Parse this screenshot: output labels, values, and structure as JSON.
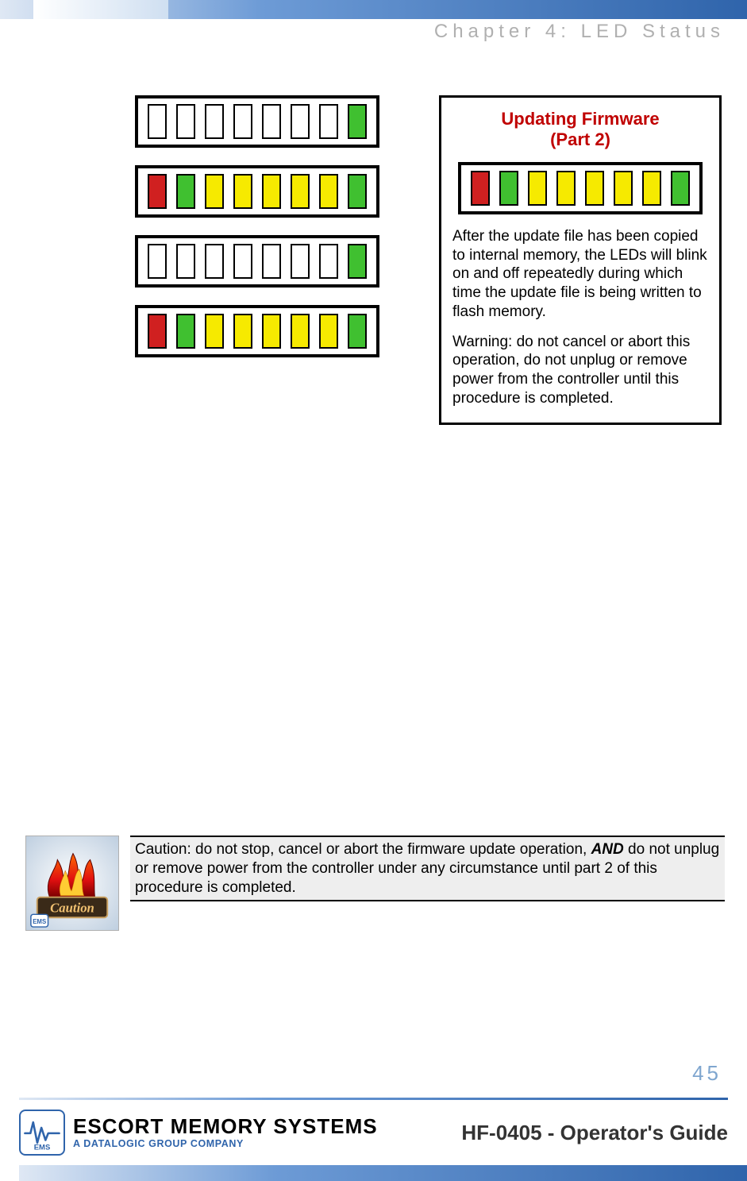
{
  "colors": {
    "red": "#d02020",
    "green": "#40c030",
    "yellow": "#f6ea00",
    "white": "#ffffff",
    "black": "#000000",
    "title_red": "#c00000",
    "page_num_blue": "#7fa6cf",
    "chapter_gray": "#b0b0b0",
    "accent_blue": "#2f64ab",
    "caution_bg": "#eeeeee"
  },
  "header": {
    "chapter": "Chapter 4: LED Status"
  },
  "led_strips": {
    "led_count": 8,
    "led_width": 24,
    "led_height": 44,
    "border_width": 2,
    "strip_border_width": 4,
    "strips": [
      {
        "colors": [
          "white",
          "white",
          "white",
          "white",
          "white",
          "white",
          "white",
          "green"
        ]
      },
      {
        "colors": [
          "red",
          "green",
          "yellow",
          "yellow",
          "yellow",
          "yellow",
          "yellow",
          "green"
        ]
      },
      {
        "colors": [
          "white",
          "white",
          "white",
          "white",
          "white",
          "white",
          "white",
          "green"
        ]
      },
      {
        "colors": [
          "red",
          "green",
          "yellow",
          "yellow",
          "yellow",
          "yellow",
          "yellow",
          "green"
        ]
      }
    ]
  },
  "info_box": {
    "title_line1": "Updating Firmware",
    "title_line2": "(Part 2)",
    "led_strip": {
      "colors": [
        "red",
        "green",
        "yellow",
        "yellow",
        "yellow",
        "yellow",
        "yellow",
        "green"
      ]
    },
    "para1": "After the update file has been copied to internal memory, the LEDs will blink on and off repeatedly during which time the update file is being written to flash memory.",
    "para2": "Warning: do not cancel or abort this operation, do not unplug or remove power from the controller until this procedure is completed."
  },
  "caution": {
    "icon_label": "Caution",
    "text_pre": "Caution: do not stop, cancel or abort the firmware update operation, ",
    "text_em": "AND",
    "text_post": " do not unplug or remove power from the controller under any circumstance until part 2 of this procedure is completed."
  },
  "page_number": "45",
  "footer": {
    "brand_main": "ESCORT MEMORY SYSTEMS",
    "brand_sub": "A DATALOGIC GROUP COMPANY",
    "logo_initials": "EMS",
    "doc_title": "HF-0405 - Operator's Guide"
  }
}
